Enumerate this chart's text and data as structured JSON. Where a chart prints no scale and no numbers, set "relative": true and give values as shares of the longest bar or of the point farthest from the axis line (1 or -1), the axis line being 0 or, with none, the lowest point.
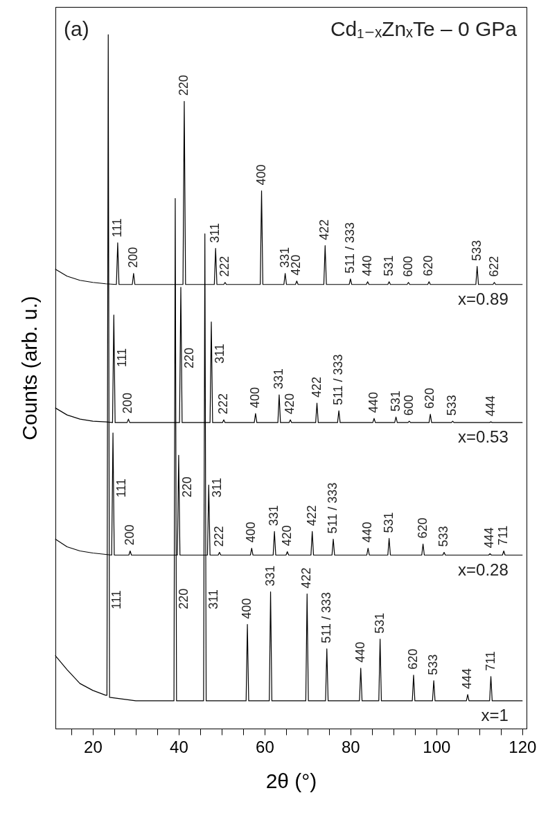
{
  "chart_data": {
    "type": "line",
    "title": "Cd₁₋ₓZnₓTe – 0 GPa",
    "xlabel": "2θ (°)",
    "ylabel": "Counts (arb. u.)",
    "relative": true,
    "line_style": "solid",
    "xlim": [
      11.3,
      121
    ],
    "xticks": [
      {
        "value": 15,
        "label": null
      },
      20,
      {
        "value": 25,
        "label": null
      },
      {
        "value": 30,
        "label": null
      },
      {
        "value": 35,
        "label": null
      },
      40,
      {
        "value": 45,
        "label": null
      },
      {
        "value": 50,
        "label": null
      },
      {
        "value": 55,
        "label": null
      },
      60,
      {
        "value": 65,
        "label": null
      },
      {
        "value": 70,
        "label": null
      },
      {
        "value": 75,
        "label": null
      },
      80,
      {
        "value": 85,
        "label": null
      },
      {
        "value": 90,
        "label": null
      },
      {
        "value": 95,
        "label": null
      },
      100,
      {
        "value": 105,
        "label": null
      },
      {
        "value": 110,
        "label": null
      },
      {
        "value": 115,
        "label": null
      },
      120
    ],
    "series": [
      {
        "name": "x=0.89",
        "color": "#000000",
        "x": [
          11.3,
          14,
          17,
          20,
          23,
          25.5,
          25.8,
          26.1,
          29.2,
          29.5,
          29.8,
          41.0,
          41.3,
          41.6,
          48.3,
          48.6,
          48.9,
          50.5,
          50.8,
          51.1,
          59.0,
          59.3,
          59.6,
          64.5,
          64.8,
          65.1,
          67.2,
          67.5,
          67.8,
          73.8,
          74.1,
          74.4,
          79.7,
          80.0,
          80.3,
          83.7,
          84.0,
          84.3,
          88.7,
          89.0,
          89.3,
          93.2,
          93.5,
          93.8,
          98.0,
          98.3,
          98.6,
          109.2,
          109.5,
          109.8,
          113.2,
          113.5,
          113.8,
          120
        ],
        "values": [
          0.662,
          0.652,
          0.646,
          0.643,
          0.641,
          0.64,
          0.7,
          0.64,
          0.64,
          0.656,
          0.64,
          0.64,
          0.904,
          0.64,
          0.64,
          0.692,
          0.64,
          0.64,
          0.643,
          0.64,
          0.64,
          0.775,
          0.64,
          0.64,
          0.656,
          0.64,
          0.64,
          0.645,
          0.64,
          0.64,
          0.696,
          0.64,
          0.64,
          0.648,
          0.64,
          0.64,
          0.644,
          0.64,
          0.64,
          0.644,
          0.64,
          0.64,
          0.643,
          0.64,
          0.64,
          0.644,
          0.64,
          0.64,
          0.666,
          0.64,
          0.64,
          0.643,
          0.64,
          0.64
        ]
      },
      {
        "name": "x=0.53",
        "color": "#000000",
        "x": [
          11.3,
          14,
          17,
          20,
          23,
          24.6,
          24.9,
          25.2,
          28.0,
          28.3,
          28.6,
          40.2,
          40.5,
          40.8,
          47.3,
          47.6,
          47.9,
          50.2,
          50.5,
          50.8,
          57.6,
          57.9,
          58.2,
          63.1,
          63.4,
          63.7,
          65.7,
          66.0,
          66.3,
          71.9,
          72.2,
          72.5,
          77.0,
          77.3,
          77.6,
          85.2,
          85.5,
          85.8,
          90.3,
          90.6,
          90.9,
          93.4,
          93.7,
          94.0,
          98.3,
          98.6,
          98.9,
          103.5,
          103.8,
          104.1,
          112.4,
          112.7,
          113.0,
          120
        ],
        "values": [
          0.462,
          0.452,
          0.446,
          0.443,
          0.442,
          0.441,
          0.596,
          0.441,
          0.441,
          0.446,
          0.441,
          0.441,
          0.636,
          0.441,
          0.441,
          0.586,
          0.441,
          0.441,
          0.445,
          0.441,
          0.441,
          0.454,
          0.441,
          0.441,
          0.481,
          0.441,
          0.441,
          0.445,
          0.441,
          0.441,
          0.469,
          0.441,
          0.441,
          0.458,
          0.441,
          0.441,
          0.447,
          0.441,
          0.441,
          0.449,
          0.441,
          0.441,
          0.443,
          0.441,
          0.441,
          0.453,
          0.441,
          0.441,
          0.443,
          0.441,
          0.441,
          0.442,
          0.441,
          0.441
        ]
      },
      {
        "name": "x=0.28",
        "color": "#000000",
        "x": [
          11.3,
          14,
          17,
          20,
          23,
          24.4,
          24.7,
          25.0,
          28.4,
          28.7,
          29.0,
          39.7,
          40.0,
          40.3,
          46.7,
          47.0,
          47.3,
          49.2,
          49.5,
          49.8,
          56.7,
          57.0,
          57.3,
          62.0,
          62.3,
          62.6,
          65.0,
          65.3,
          65.6,
          70.8,
          71.1,
          71.4,
          75.7,
          76.0,
          76.3,
          83.8,
          84.1,
          84.4,
          88.7,
          89.0,
          89.3,
          96.6,
          96.9,
          97.2,
          101.5,
          101.8,
          102.1,
          112.2,
          112.5,
          112.8,
          115.4,
          115.7,
          116.0,
          120
        ],
        "values": [
          0.273,
          0.262,
          0.256,
          0.253,
          0.251,
          0.25,
          0.426,
          0.25,
          0.25,
          0.256,
          0.25,
          0.25,
          0.394,
          0.25,
          0.25,
          0.351,
          0.25,
          0.25,
          0.254,
          0.25,
          0.25,
          0.26,
          0.25,
          0.25,
          0.284,
          0.25,
          0.25,
          0.255,
          0.25,
          0.25,
          0.284,
          0.25,
          0.25,
          0.273,
          0.25,
          0.25,
          0.26,
          0.25,
          0.25,
          0.274,
          0.25,
          0.25,
          0.266,
          0.25,
          0.25,
          0.254,
          0.25,
          0.25,
          0.252,
          0.25,
          0.25,
          0.256,
          0.25,
          0.25
        ]
      },
      {
        "name": "x=1",
        "color": "#000000",
        "x": [
          11.3,
          14,
          17,
          20,
          23,
          23.3,
          23.6,
          23.9,
          30,
          38.9,
          39.2,
          39.5,
          45.8,
          46.1,
          46.4,
          55.7,
          56.0,
          56.3,
          61.1,
          61.4,
          61.7,
          69.6,
          69.9,
          70.2,
          74.2,
          74.5,
          74.8,
          82.1,
          82.4,
          82.7,
          86.6,
          86.9,
          87.2,
          94.4,
          94.7,
          95.0,
          99.1,
          99.4,
          99.7,
          107.0,
          107.3,
          107.6,
          112.4,
          112.7,
          113.0,
          120
        ],
        "values": [
          0.105,
          0.085,
          0.065,
          0.055,
          0.048,
          0.048,
          1.0,
          0.045,
          0.04,
          0.04,
          0.764,
          0.04,
          0.04,
          0.713,
          0.04,
          0.04,
          0.15,
          0.04,
          0.04,
          0.197,
          0.04,
          0.04,
          0.194,
          0.04,
          0.04,
          0.115,
          0.04,
          0.04,
          0.087,
          0.04,
          0.04,
          0.129,
          0.04,
          0.04,
          0.077,
          0.04,
          0.04,
          0.069,
          0.04,
          0.04,
          0.049,
          0.04,
          0.04,
          0.075,
          0.04,
          0.04
        ]
      }
    ],
    "annotations": [
      "(a)",
      {
        "text": "111",
        "x": 25.8,
        "y": 0.7
      },
      {
        "text": "200",
        "x": 29.5,
        "y": 0.656
      },
      {
        "text": "220",
        "x": 41.3,
        "y": 0.904
      },
      {
        "text": "311",
        "x": 48.6,
        "y": 0.692
      },
      {
        "text": "222",
        "x": 50.8,
        "y": 0.643
      },
      {
        "text": "400",
        "x": 59.3,
        "y": 0.775
      },
      {
        "text": "331",
        "x": 64.8,
        "y": 0.656
      },
      {
        "text": "420",
        "x": 67.5,
        "y": 0.645
      },
      {
        "text": "422",
        "x": 74.1,
        "y": 0.696
      },
      {
        "text": "511 / 333",
        "x": 80.0,
        "y": 0.648
      },
      {
        "text": "440",
        "x": 84.0,
        "y": 0.644
      },
      {
        "text": "531",
        "x": 89.0,
        "y": 0.644
      },
      {
        "text": "600",
        "x": 93.5,
        "y": 0.643
      },
      {
        "text": "620",
        "x": 98.3,
        "y": 0.644
      },
      {
        "text": "533",
        "x": 109.5,
        "y": 0.666
      },
      {
        "text": "622",
        "x": 113.5,
        "y": 0.643
      },
      {
        "text": "111",
        "x": 24.9,
        "y": 0.521
      },
      {
        "text": "200",
        "x": 28.3,
        "y": 0.446
      },
      {
        "text": "220",
        "x": 40.5,
        "y": 0.519
      },
      {
        "text": "311",
        "x": 47.6,
        "y": 0.526
      },
      {
        "text": "222",
        "x": 50.5,
        "y": 0.445
      },
      {
        "text": "400",
        "x": 57.9,
        "y": 0.454
      },
      {
        "text": "331",
        "x": 63.4,
        "y": 0.481
      },
      {
        "text": "420",
        "x": 66.0,
        "y": 0.445
      },
      {
        "text": "422",
        "x": 72.2,
        "y": 0.469
      },
      {
        "text": "511 / 333",
        "x": 77.3,
        "y": 0.458
      },
      {
        "text": "440",
        "x": 85.5,
        "y": 0.447
      },
      {
        "text": "531",
        "x": 90.6,
        "y": 0.449
      },
      {
        "text": "600",
        "x": 93.7,
        "y": 0.443
      },
      {
        "text": "620",
        "x": 98.6,
        "y": 0.453
      },
      {
        "text": "533",
        "x": 103.8,
        "y": 0.443
      },
      {
        "text": "444",
        "x": 112.7,
        "y": 0.442
      },
      {
        "text": "111",
        "x": 24.7,
        "y": 0.333
      },
      {
        "text": "200",
        "x": 28.7,
        "y": 0.256
      },
      {
        "text": "220",
        "x": 40.0,
        "y": 0.333
      },
      {
        "text": "311",
        "x": 47.0,
        "y": 0.333
      },
      {
        "text": "222",
        "x": 49.5,
        "y": 0.254
      },
      {
        "text": "400",
        "x": 57.0,
        "y": 0.26
      },
      {
        "text": "331",
        "x": 62.3,
        "y": 0.284
      },
      {
        "text": "420",
        "x": 65.3,
        "y": 0.255
      },
      {
        "text": "422",
        "x": 71.1,
        "y": 0.284
      },
      {
        "text": "511 / 333",
        "x": 76.0,
        "y": 0.273
      },
      {
        "text": "440",
        "x": 84.1,
        "y": 0.26
      },
      {
        "text": "531",
        "x": 89.0,
        "y": 0.274
      },
      {
        "text": "620",
        "x": 96.9,
        "y": 0.266
      },
      {
        "text": "533",
        "x": 101.8,
        "y": 0.254
      },
      {
        "text": "444",
        "x": 112.5,
        "y": 0.252
      },
      {
        "text": "711",
        "x": 115.7,
        "y": 0.256
      },
      {
        "text": "111",
        "x": 23.6,
        "y": 0.172
      },
      {
        "text": "220",
        "x": 39.2,
        "y": 0.172
      },
      {
        "text": "311",
        "x": 46.1,
        "y": 0.172
      },
      {
        "text": "400",
        "x": 56.0,
        "y": 0.15
      },
      {
        "text": "331",
        "x": 61.4,
        "y": 0.197
      },
      {
        "text": "422",
        "x": 69.9,
        "y": 0.194
      },
      {
        "text": "511 / 333",
        "x": 74.5,
        "y": 0.115
      },
      {
        "text": "440",
        "x": 82.4,
        "y": 0.087
      },
      {
        "text": "531",
        "x": 86.9,
        "y": 0.129
      },
      {
        "text": "620",
        "x": 94.7,
        "y": 0.077
      },
      {
        "text": "533",
        "x": 99.4,
        "y": 0.069
      },
      {
        "text": "444",
        "x": 107.3,
        "y": 0.049
      },
      {
        "text": "711",
        "x": 112.7,
        "y": 0.075
      }
    ]
  }
}
